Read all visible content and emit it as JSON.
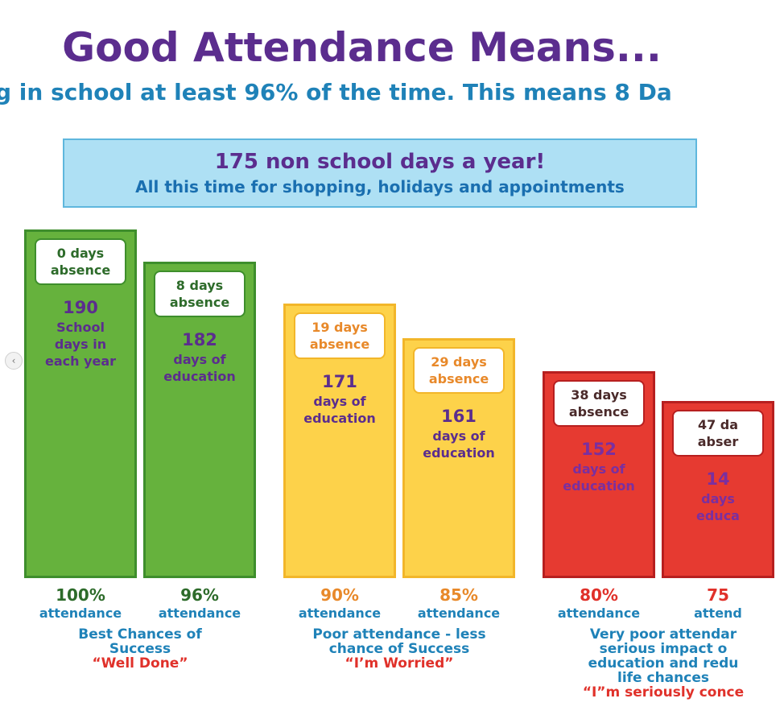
{
  "title": "Good Attendance Means...",
  "subtitle": "g in school at least 96% of the time. This means 8 Da",
  "banner": {
    "line1": "175 non school days a year!",
    "line2": "All this time for shopping, holidays and appointments"
  },
  "colors": {
    "green": "#66b23d",
    "yellow": "#fdd24a",
    "red": "#e63a31",
    "purple": "#5b2d8e",
    "blue": "#1f82b8"
  },
  "chart_data": {
    "type": "bar",
    "categories": [
      "100%",
      "96%",
      "90%",
      "85%",
      "80%",
      "75"
    ],
    "values": [
      190,
      182,
      171,
      161,
      152,
      14
    ],
    "ylim": [
      0,
      200
    ],
    "bars": [
      {
        "color": "green",
        "absence_line1": "0 days",
        "absence_line2": "absence",
        "days": "190",
        "days_label": [
          "School",
          "days in",
          "each year"
        ],
        "percent": "100%",
        "attendance": "attendance"
      },
      {
        "color": "green",
        "absence_line1": "8 days",
        "absence_line2": "absence",
        "days": "182",
        "days_label": [
          "days of",
          "education"
        ],
        "percent": "96%",
        "attendance": "attendance"
      },
      {
        "color": "yellow",
        "absence_line1": "19 days",
        "absence_line2": "absence",
        "days": "171",
        "days_label": [
          "days of",
          "education"
        ],
        "percent": "90%",
        "attendance": "attendance"
      },
      {
        "color": "yellow",
        "absence_line1": "29 days",
        "absence_line2": "absence",
        "days": "161",
        "days_label": [
          "days of",
          "education"
        ],
        "percent": "85%",
        "attendance": "attendance"
      },
      {
        "color": "red",
        "absence_line1": "38 days",
        "absence_line2": "absence",
        "days": "152",
        "days_label": [
          "days of",
          "education"
        ],
        "percent": "80%",
        "attendance": "attendance"
      },
      {
        "color": "red",
        "absence_line1": "47 da",
        "absence_line2": "abser",
        "days": "14",
        "days_label": [
          "days",
          "educa"
        ],
        "percent": "75",
        "attendance": "attend"
      }
    ],
    "groups": [
      {
        "lines": [
          "Best Chances of",
          "Success"
        ],
        "quote": "“Well Done”"
      },
      {
        "lines": [
          "Poor attendance - less",
          "chance of Success"
        ],
        "quote": "“I’m Worried”"
      },
      {
        "lines": [
          "Very poor attendar",
          "serious impact o",
          "education and redu",
          "life chances"
        ],
        "quote": "“I”m seriously conce"
      }
    ]
  }
}
